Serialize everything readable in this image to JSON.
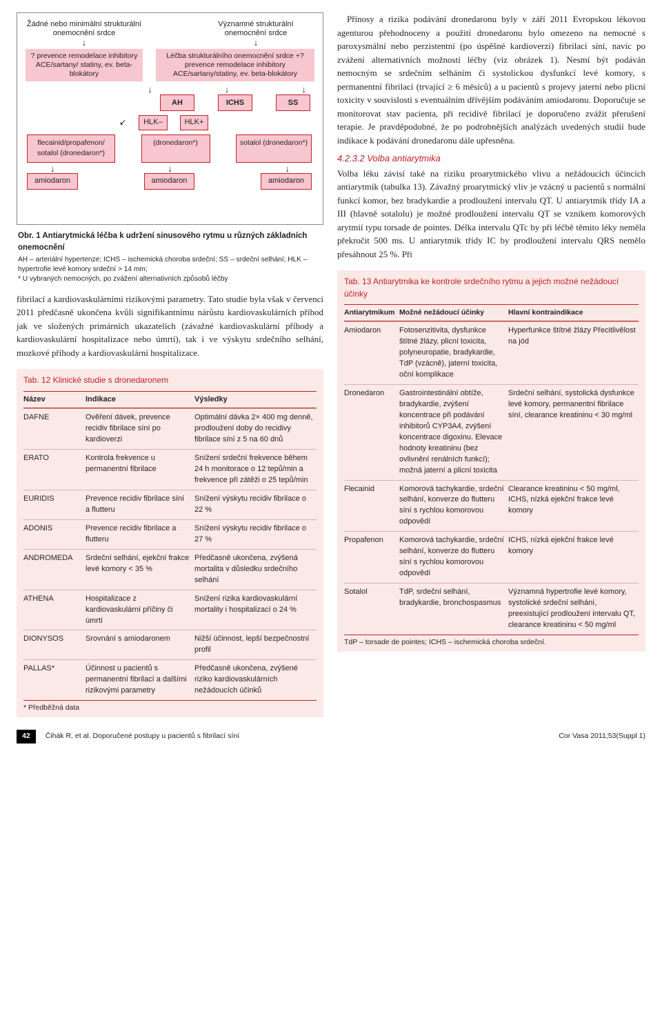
{
  "flowchart": {
    "head_left": "Žádné nebo minimální strukturální onemocnění srdce",
    "head_right": "Významné strukturální onemocnění srdce",
    "pinkbox_left": "? prevence remodelace inhibitory ACE/sartany/ statiny, ev. beta-blokátory",
    "pinkbox_right": "Léčba strukturálního onemocnění srdce +? prevence remodelace inhibitory ACE/sartany/statiny, ev. beta-blokátory",
    "cat1": "AH",
    "cat2": "ICHS",
    "cat3": "SS",
    "hlk_minus": "HLK–",
    "hlk_plus": "HLK+",
    "drug1": "flecainid/propafenon/ sotalol (dronedaron*)",
    "drug2": "(dronedaron*)",
    "drug3": "sotalol (dronedaron*)",
    "amio": "amiodaron"
  },
  "fig1": {
    "title": "Obr. 1 Antiarytmická léčba k udržení sinusového rytmu u různých základních onemocnění",
    "note": "AH – arteriální hypertenze; ICHS – ischemická choroba srdeční; SS – srdeční selhání; HLK – hypertrofie levé komory srdeční > 14 mm;\n* U vybraných nemocných, po zvážení alternativních způsobů léčby"
  },
  "para_left": "fibrilací a kardiovaskulárními rizikovými parametry. Tato studie byla však v červenci 2011 předčasně ukončena kvůli signifikantnímu nárůstu kardiovaskulárních příhod jak ve složených primárních ukazatelích (závažné kardiovaskulární příhody a kardiovaskulární hospitalizace nebo úmrtí), tak i ve výskytu srdečního selhání, mozkové příhody a kardiovaskulární hospitalizace.",
  "para_right1": "Přínosy a rizika podávání dronedaronu byly v září 2011 Evropskou lékovou agenturou přehodnoceny a použití dronedaronu bylo omezeno na nemocné s paroxysmální nebo perzistentní (po úspěšné kardioverzi) fibrilací síní, navíc po zvážení alternativních možností léčby (viz obrázek 1). Nesmí být podáván nemocným se srdečním selháním či systolickou dysfunkcí levé komory, s permanentní fibrilací (trvající ≥ 6 měsíců) a u pacientů s projevy jaterní nebo plicní toxicity v souvislosti s eventuálním dřívějším podáváním amiodaronu. Doporučuje se monitorovat stav pacienta, při recidivě fibrilací je doporučeno zvážit přerušení terapie. Je pravděpodobné, že po podrobnějších analýzách uvedených studií bude indikace k podávání dronedaronu dále upřesněna.",
  "sec_title": "4.2.3.2 Volba antiarytmika",
  "para_right2": "Volba léku závisí také na riziku proarytmického vlivu a nežádoucích účincích antiarytmik (tabulka 13). Závažný proarytmický vliv je vzácný u pacientů s normální funkcí komor, bez bradykardie a prodloužení intervalu QT. U antiarytmik třídy IA a III (hlavně sotalolu) je možné prodloužení intervalu QT se vznikem komorových arytmií typu torsade de pointes. Délka intervalu QTc by při léčbě těmito léky neměla překročit 500 ms. U antiarytmik třídy IC by prodloužení intervalu QRS nemělo přesáhnout 25 %. Při",
  "tab12": {
    "title": "Tab. 12  Klinické studie s dronedaronem",
    "head": [
      "Název",
      "Indikace",
      "Výsledky"
    ],
    "rows": [
      [
        "DAFNE",
        "Ověření dávek, prevence recidiv fibrilace síní po kardioverzi",
        "Optimální dávka 2× 400 mg denně, prodloužení doby do recidivy fibrilace síní z 5 na 60 dnů"
      ],
      [
        "ERATO",
        "Kontrola frekvence u permanentní fibrilace",
        "Snížení srdeční frekvence během 24 h monitorace o 12 tepů/min a frekvence při zátěži o 25 tepů/min"
      ],
      [
        "EURIDIS",
        "Prevence recidiv fibrilace síní a flutteru",
        "Snížení výskytu recidiv fibrilace o 22 %"
      ],
      [
        "ADONIS",
        "Prevence recidiv fibrilace a flutteru",
        "Snížení výskytu recidiv fibrilace o 27 %"
      ],
      [
        "ANDROMEDA",
        "Srdeční selhání, ejekční frakce levé komory < 35 %",
        "Předčasně ukončena, zvýšená mortalita v důsledku srdečního selhání"
      ],
      [
        "ATHENA",
        "Hospitalizace z kardiovaskulární příčiny či úmrtí",
        "Snížení rizika kardiovaskulární mortality i hospitalizací o 24 %"
      ],
      [
        "DIONYSOS",
        "Srovnání s amiodaronem",
        "Nižší účinnost, lepší bezpečnostní profil"
      ],
      [
        "PALLAS*",
        "Účinnost u pacientů s permanentní fibrilací a dalšími rizikovými parametry",
        "Předčasně ukončena, zvýšené riziko kardiovaskulárních nežádoucích účinků"
      ]
    ],
    "foot": "* Předběžná data"
  },
  "tab13": {
    "title": "Tab. 13  Antiarytmika ke kontrole srdečního rytmu a jejich možné nežádoucí účinky",
    "head": [
      "Antiarytmikum",
      "Možné nežádoucí účinky",
      "Hlavní kontraindikace"
    ],
    "rows": [
      [
        "Amiodaron",
        "Fotosenzitivita, dysfunkce štítné žlázy, plicní toxicita, polyneuropatie, bradykardie, TdP (vzácně), jaterní toxicita, oční komplikace",
        "Hyperfunkce štítné žlázy Přecitlivělost na jód"
      ],
      [
        "Dronedaron",
        "Gastrointestinální obtíže, bradykardie, zvýšení koncentrace při podávání inhibitorů CYP3A4, zvýšení koncentrace digoxinu. Elevace hodnoty kreatininu (bez ovlivnění renálních funkcí); možná jaterní a plicní toxicita",
        "Srdeční selhání, systolická dysfunkce levé komory, permanentní fibrilace síní, clearance kreatininu < 30 mg/ml"
      ],
      [
        "Flecainid",
        "Komorová tachykardie, srdeční selhání, konverze do flutteru síní s rychlou komorovou odpovědí",
        "Clearance kreatininu < 50 mg/ml, ICHS, nízká ejekční frakce levé komory"
      ],
      [
        "Propafenon",
        "Komorová tachykardie, srdeční selhání, konverze do flutteru síní s rychlou komorovou odpovědí",
        "ICHS, nízká ejekční frakce levé komory"
      ],
      [
        "Sotalol",
        "TdP, srdeční selhání, bradykardie, bronchospasmus",
        "Významná hypertrofie levé komory, systolické srdeční selhání, preexistující prodloužení intervalu QT, clearance kreatininu < 50 mg/ml"
      ]
    ],
    "foot": "TdP – torsade de pointes; ICHS – ischemická choroba srdeční."
  },
  "footer": {
    "page": "42",
    "mid": "Čihák R, et al.  Doporučené postupy u pacientů s fibrilací síní",
    "right": "Cor Vasa 2011;53(Suppl 1)"
  }
}
